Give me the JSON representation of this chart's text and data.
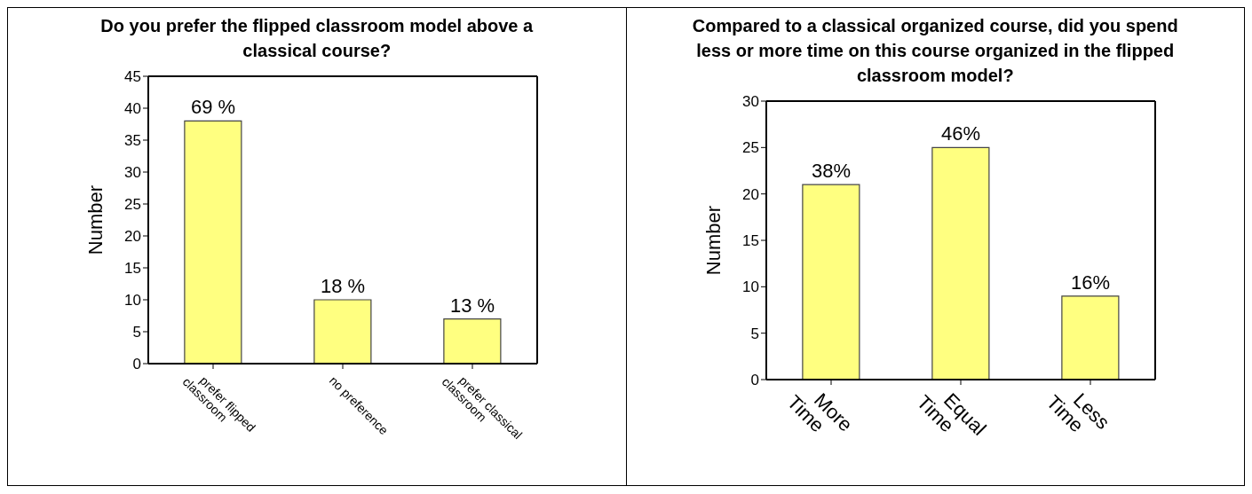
{
  "chart_data": [
    {
      "type": "bar",
      "title": "Do you prefer the flipped classroom model above a classical course?",
      "ylabel": "Number",
      "categories": [
        "prefer flipped classroom",
        "no preference",
        "prefer classical classroom"
      ],
      "values": [
        38,
        10,
        7
      ],
      "color": "#ffff80",
      "ylim": [
        0,
        45
      ],
      "yticks": [
        0,
        5,
        10,
        15,
        20,
        25,
        30,
        35,
        40,
        45
      ],
      "annotations": [
        {
          "text": "69 %",
          "x": "prefer flipped classroom",
          "y": 38
        },
        {
          "text": "18 %",
          "x": "no preference",
          "y": 10
        },
        {
          "text": "13 %",
          "x": "prefer classical classroom",
          "y": 7
        }
      ]
    },
    {
      "type": "bar",
      "title": "Compared to a classical organized course, did you spend less or more time on this course organized in the flipped classroom model?",
      "ylabel": "Number",
      "categories": [
        "More Time",
        "Equal Time",
        "Less Time"
      ],
      "values": [
        21,
        25,
        9
      ],
      "color": "#ffff80",
      "ylim": [
        0,
        30
      ],
      "yticks": [
        0,
        5,
        10,
        15,
        20,
        25,
        30
      ],
      "annotations": [
        {
          "text": "38%",
          "x": "More Time",
          "y": 21
        },
        {
          "text": "46%",
          "x": "Equal Time",
          "y": 25
        },
        {
          "text": "16%",
          "x": "Less Time",
          "y": 9
        }
      ]
    }
  ]
}
